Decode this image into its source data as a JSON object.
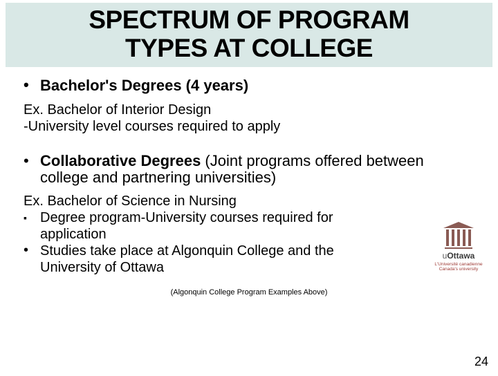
{
  "colors": {
    "title_band_bg": "#d9e8e6",
    "page_bg": "#ffffff",
    "text": "#000000",
    "logo_primary": "#8a5b54",
    "logo_tagline": "#9e3b36"
  },
  "typography": {
    "title_fontsize_pt": 28,
    "bullet_bold_fontsize_pt": 17,
    "body_fontsize_pt": 15,
    "footnote_fontsize_pt": 8,
    "pagenum_fontsize_pt": 14
  },
  "title": {
    "line1": "SPECTRUM OF PROGRAM",
    "line2": "TYPES AT COLLEGE"
  },
  "section1": {
    "heading": "Bachelor's Degrees (4 years)",
    "example": "Ex. Bachelor of Interior Design",
    "note": "-University level courses required to apply"
  },
  "section2": {
    "heading_bold": "Collaborative Degrees",
    "heading_rest": " (Joint programs offered between college and partnering universities)",
    "example": "Ex. Bachelor of Science in Nursing",
    "points": [
      "Degree program-University courses required for application",
      "Studies take place at Algonquin College and the University of Ottawa"
    ]
  },
  "footnote": "(Algonquin College Program Examples Above)",
  "page_number": "24",
  "logo": {
    "wordmark_prefix": "u",
    "wordmark_main": "Ottawa",
    "tagline_line1": "L'Université canadienne",
    "tagline_line2": "Canada's university"
  }
}
